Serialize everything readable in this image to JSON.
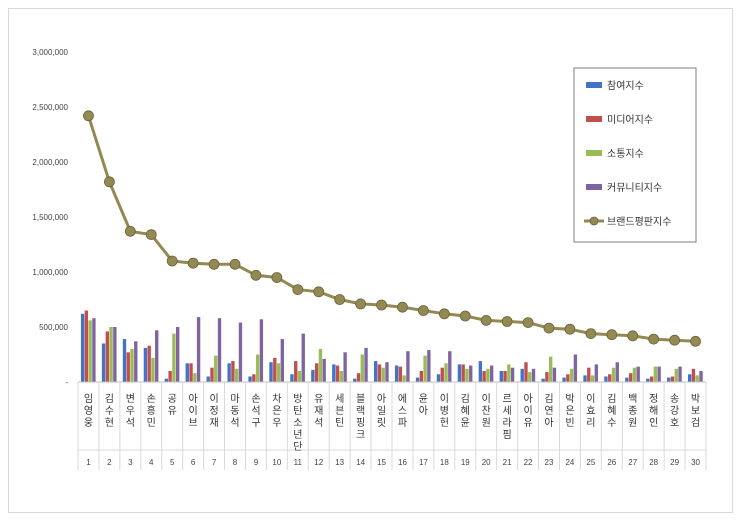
{
  "chart_data": {
    "type": "bar",
    "title": "",
    "xlabel": "",
    "ylabel": "",
    "ylim": [
      0,
      3000000
    ],
    "y_ticks": [
      "-",
      "500,000",
      "1,000,000",
      "1,500,000",
      "2,000,000",
      "2,500,000",
      "3,000,000"
    ],
    "y_tick_values": [
      0,
      500000,
      1000000,
      1500000,
      2000000,
      2500000,
      3000000
    ],
    "grid": false,
    "legend_position": "top-right",
    "ranks": [
      "1",
      "2",
      "3",
      "4",
      "5",
      "6",
      "7",
      "8",
      "9",
      "10",
      "11",
      "12",
      "13",
      "14",
      "15",
      "16",
      "17",
      "18",
      "19",
      "20",
      "21",
      "22",
      "23",
      "24",
      "25",
      "26",
      "27",
      "28",
      "29",
      "30"
    ],
    "categories": [
      "임영웅",
      "김수현",
      "변우석",
      "손흥민",
      "공유",
      "아이브",
      "이정재",
      "마동석",
      "손석구",
      "차은우",
      "방탄소년단",
      "유재석",
      "세븐틴",
      "블랙핑크",
      "아일릿",
      "에스파",
      "윤아",
      "이병헌",
      "김혜윤",
      "이찬원",
      "르세라핌",
      "아이유",
      "김연아",
      "박은빈",
      "이효리",
      "김혜수",
      "백종원",
      "정해인",
      "송강호",
      "박보검"
    ],
    "series": [
      {
        "name": "참여지수",
        "type": "bar",
        "color": "#4472c4",
        "values": [
          620000,
          350000,
          390000,
          310000,
          30000,
          170000,
          50000,
          170000,
          50000,
          180000,
          70000,
          110000,
          160000,
          30000,
          190000,
          150000,
          40000,
          70000,
          160000,
          190000,
          100000,
          120000,
          30000,
          40000,
          60000,
          50000,
          40000,
          30000,
          40000,
          70000
        ]
      },
      {
        "name": "미디어지수",
        "type": "bar",
        "color": "#c0504d",
        "values": [
          650000,
          460000,
          270000,
          330000,
          100000,
          170000,
          130000,
          190000,
          70000,
          220000,
          190000,
          170000,
          150000,
          80000,
          160000,
          140000,
          100000,
          130000,
          160000,
          100000,
          100000,
          180000,
          90000,
          70000,
          130000,
          70000,
          80000,
          50000,
          50000,
          120000
        ]
      },
      {
        "name": "소통지수",
        "type": "bar",
        "color": "#9bbb59",
        "values": [
          560000,
          500000,
          300000,
          220000,
          440000,
          80000,
          240000,
          120000,
          250000,
          170000,
          100000,
          300000,
          100000,
          250000,
          130000,
          60000,
          240000,
          170000,
          120000,
          120000,
          160000,
          90000,
          230000,
          120000,
          60000,
          130000,
          130000,
          140000,
          120000,
          60000
        ]
      },
      {
        "name": "커뮤니티지수",
        "type": "bar",
        "color": "#8064a2",
        "values": [
          580000,
          500000,
          370000,
          470000,
          500000,
          590000,
          580000,
          540000,
          570000,
          390000,
          440000,
          210000,
          270000,
          310000,
          180000,
          280000,
          290000,
          280000,
          150000,
          150000,
          130000,
          120000,
          130000,
          250000,
          160000,
          180000,
          140000,
          140000,
          140000,
          100000
        ]
      },
      {
        "name": "브랜드평판지수",
        "type": "line",
        "color": "#938953",
        "values": [
          2420000,
          1820000,
          1370000,
          1340000,
          1100000,
          1080000,
          1070000,
          1070000,
          970000,
          950000,
          840000,
          820000,
          750000,
          710000,
          700000,
          680000,
          650000,
          620000,
          600000,
          560000,
          550000,
          540000,
          490000,
          480000,
          440000,
          430000,
          420000,
          390000,
          380000,
          370000
        ]
      }
    ]
  }
}
